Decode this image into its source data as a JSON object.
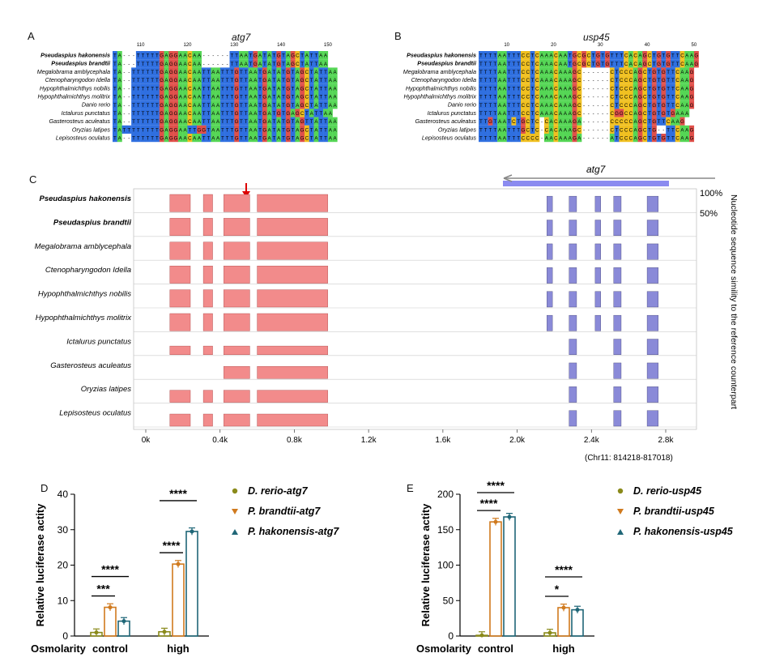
{
  "panel_letters": {
    "a": "A",
    "b": "B",
    "c": "C",
    "d": "D",
    "e": "E"
  },
  "panel_a": {
    "gene": "atg7",
    "ticks": [
      "110",
      "120",
      "130",
      "140",
      "150"
    ],
    "species": [
      {
        "name": "Pseudaspius hakonensis",
        "bold": true,
        "seq": "TA---TTTTTGAGGAACAA------TTAATGATATGTAGCTATTAA"
      },
      {
        "name": "Pseudaspius brandtii",
        "bold": true,
        "seq": "TA---TTTTTGAGGAACAA------TTAATGATATGTAGCTATTAA"
      },
      {
        "name": "Megalobrama amblycephala",
        "bold": false,
        "seq": "TA--TTTTTTGAGGAACAATTAATTTGTTAATGATATGTAGCTATTAA"
      },
      {
        "name": "Ctenopharyngodon Idella",
        "bold": false,
        "seq": "TA--TTTTTTGAGGAACAATTAATTTGTTAATGATATGTAGCTATTAA"
      },
      {
        "name": "Hypophthalmichthys nobilis",
        "bold": false,
        "seq": "TA--TTTTTTGAGGAACAATTAATTTGTTAATGATATGTAGCTATTAA"
      },
      {
        "name": "Hypophthalmichthys molitrix",
        "bold": false,
        "seq": "TA--TTTTTTGAGGAACAATTAATTTGTTAATGATATGTAGCTATTAA"
      },
      {
        "name": "Danio rerio",
        "bold": false,
        "seq": "TA--TTTTTTGAGGAACAATTAATTTGTTAATGATATGTAGCTATTAA"
      },
      {
        "name": "Ictalurus punctatus",
        "bold": false,
        "seq": "TA--TTTTTTGAGGAACAATTAATTTGTTAATGATGTGAGCTATTAA"
      },
      {
        "name": "Gasterosteus aculeatus",
        "bold": false,
        "seq": "TA--TTTTTTGAGGAACAATTAATTTGTTAATGATATGTAGTTATTAA"
      },
      {
        "name": "Oryzias latipes",
        "bold": false,
        "seq": "TATTTTTTTTGAGGAATTGGTAATTTGTTAATGATATGTAGCTATTAA"
      },
      {
        "name": "Lepisosteus oculatus",
        "bold": false,
        "seq": "TA--TTTTTTGAGGAACAATTAATTTGTTAATGATATGTAGCTATTAA"
      }
    ]
  },
  "panel_b": {
    "gene": "usp45",
    "ticks": [
      "10",
      "20",
      "30",
      "40",
      "50"
    ],
    "species": [
      {
        "name": "Pseudaspius hakonensis",
        "bold": true,
        "seq": "TTTTAATTTCCTCAAACAATGCGCTGTGTTTCACAGCTGTGTTCAAG"
      },
      {
        "name": "Pseudaspius brandtii",
        "bold": true,
        "seq": "TTTTAATTTCCTCAAACAATGCGCTGTGTTTCACAGCTGTGTTCAAG"
      },
      {
        "name": "Megalobrama amblycephala",
        "bold": false,
        "seq": "TTTTAATTTCCTCAAACAAAGC------CTCCCAGCTGTGTTCAAG"
      },
      {
        "name": "Ctenopharyngodon Idella",
        "bold": false,
        "seq": "TTTTAATTTCCTCAAACAAAGC------CTCCCAGCTGTGTTCAAG"
      },
      {
        "name": "Hypophthalmichthys nobilis",
        "bold": false,
        "seq": "TTTTAATTTCCTCAAACAAAGC------CTCCCAGCTGTGTTCAAG"
      },
      {
        "name": "Hypophthalmichthys molitrix",
        "bold": false,
        "seq": "TTTTAATTTCCTCAAACAAAGC------CTCCCAGCTGTGTTCAAG"
      },
      {
        "name": "Danio rerio",
        "bold": false,
        "seq": "TTTTAATTTCCTCAAACAAAGC------CTCCCAGCTGTGTTCAAG"
      },
      {
        "name": "Ictalurus punctatus",
        "bold": false,
        "seq": "TTTTAATTTCCTCAAACAAAGC------CGGCCAGCTGTGTGAAA"
      },
      {
        "name": "Gasterosteus aculeatus",
        "bold": false,
        "seq": "TTGTAATCTGCTC-CACAAAGA------CCCCCAGCTGTTCAAG"
      },
      {
        "name": "Oryzias latipes",
        "bold": false,
        "seq": "TTTTAATTTGCTC-CACAAAGC------CTCCCAGCTG--TTCAAG"
      },
      {
        "name": "Lepisosteus oculatus",
        "bold": false,
        "seq": "TTTTAATTTCCCC-AACAAAGA------ATCCCAGCTGTGTTCAAG"
      }
    ]
  },
  "panel_c": {
    "gene": "atg7",
    "species": [
      {
        "name": "Pseudaspius hakonensis",
        "bold": true
      },
      {
        "name": "Pseudaspius brandtii",
        "bold": true
      },
      {
        "name": "Megalobrama amblycephala",
        "bold": false
      },
      {
        "name": "Ctenopharyngodon Idella",
        "bold": false
      },
      {
        "name": "Hypophthalmichthys nobilis",
        "bold": false
      },
      {
        "name": "Hypophthalmichthys molitrix",
        "bold": false
      },
      {
        "name": "Ictalurus punctatus",
        "bold": false
      },
      {
        "name": "Gasterosteus aculeatus",
        "bold": false
      },
      {
        "name": "Oryzias latipes",
        "bold": false
      },
      {
        "name": "Lepisosteus oculatus",
        "bold": false
      }
    ],
    "x_ticks": [
      "0k",
      "0.4k",
      "0.8k",
      "1.2k",
      "1.6k",
      "2.0k",
      "2.4k",
      "2.8k"
    ],
    "y_top": "100%",
    "y_mid": "50%",
    "right_label": "Nucleotide sequence simility to the reference counterpart",
    "coord": "(Chr11: 814218-817018)",
    "colors": {
      "noncoding": "#f28b8b",
      "coding": "#8a8ad8",
      "gene_bar": "#8b8bf0"
    }
  },
  "chart_data": [
    {
      "type": "bar",
      "title": "",
      "xlabel_prefix": "Osmolarity",
      "ylabel": "Relative luciferase actity",
      "ylim": [
        0,
        40
      ],
      "yticks": [
        "0",
        "10",
        "20",
        "30",
        "40"
      ],
      "categories": [
        "control",
        "high"
      ],
      "series": [
        {
          "name": "D. rerio-atg7",
          "color": "#8a8a1a",
          "values": [
            1.0,
            1.2
          ]
        },
        {
          "name": "P. brandtii-atg7",
          "color": "#d07a1e",
          "values": [
            8.1,
            20.3
          ]
        },
        {
          "name": "P. hakonensis-atg7",
          "color": "#1f6677",
          "values": [
            4.2,
            29.5
          ]
        }
      ],
      "significance": [
        {
          "label": "***",
          "group": "control"
        },
        {
          "label": "****",
          "group": "control"
        },
        {
          "label": "****",
          "group": "high"
        },
        {
          "label": "****",
          "group": "high"
        }
      ]
    },
    {
      "type": "bar",
      "title": "",
      "xlabel_prefix": "Osmolarity",
      "ylabel": "Relative luciferase actity",
      "ylim": [
        0,
        200
      ],
      "yticks": [
        "0",
        "50",
        "100",
        "150",
        "200"
      ],
      "categories": [
        "control",
        "high"
      ],
      "series": [
        {
          "name": "D. rerio-usp45",
          "color": "#8a8a1a",
          "values": [
            1.0,
            4.5
          ]
        },
        {
          "name": "P. brandtii-usp45",
          "color": "#d07a1e",
          "values": [
            161,
            40
          ]
        },
        {
          "name": "P. hakonensis-usp45",
          "color": "#1f6677",
          "values": [
            168,
            37
          ]
        }
      ],
      "significance": [
        {
          "label": "****",
          "group": "control"
        },
        {
          "label": "****",
          "group": "control"
        },
        {
          "label": "*",
          "group": "high"
        },
        {
          "label": "****",
          "group": "high"
        }
      ]
    }
  ]
}
